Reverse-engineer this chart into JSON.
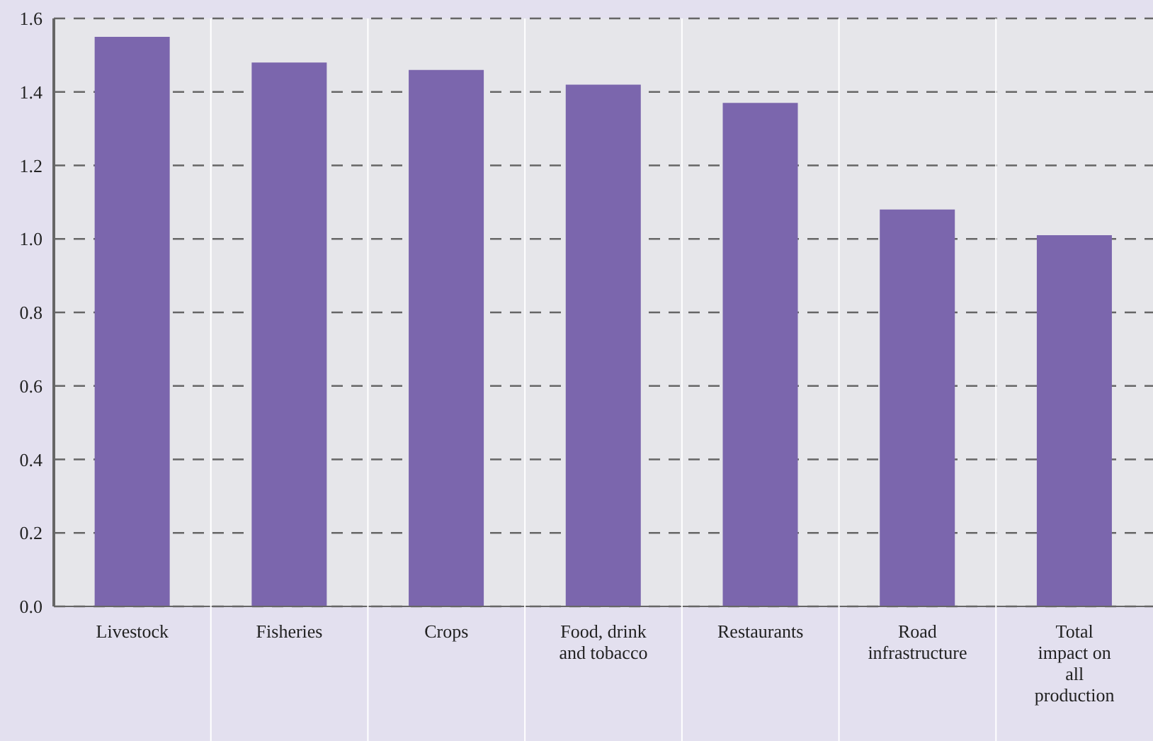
{
  "chart_data": {
    "type": "bar",
    "categories": [
      "Livestock",
      "Fisheries",
      "Crops",
      "Food, drink and tobacco",
      "Restaurants",
      "Road infrastructure",
      "Total impact on all production"
    ],
    "values": [
      1.55,
      1.48,
      1.46,
      1.42,
      1.37,
      1.08,
      1.01
    ],
    "color": "#7b66ad",
    "ylim": [
      0,
      1.6
    ],
    "yticks": [
      {
        "value": 0,
        "label": "0.0"
      },
      0.2,
      0.4,
      0.6,
      0.8,
      {
        "value": 1,
        "label": "1.0"
      },
      1.2,
      1.4,
      1.6
    ],
    "grid": "y"
  }
}
